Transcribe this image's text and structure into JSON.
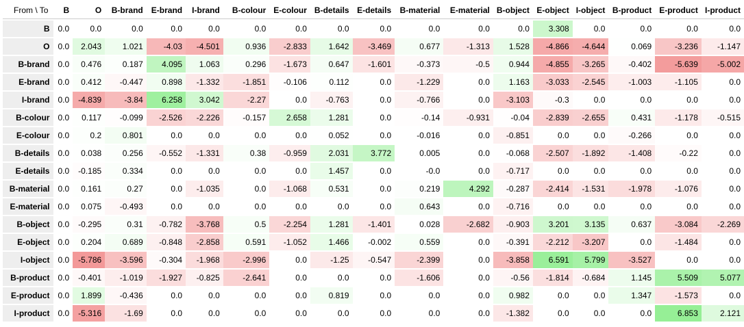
{
  "corner_label": "From \\ To",
  "colors": {
    "positive": "#90ee90",
    "negative": "#f08080",
    "row_header_bg": "#eeeeee"
  },
  "chart_data": {
    "type": "heatmap",
    "xlabel": "To",
    "ylabel": "From",
    "columns": [
      "B",
      "O",
      "B-brand",
      "E-brand",
      "I-brand",
      "B-colour",
      "E-colour",
      "B-details",
      "E-details",
      "B-material",
      "E-material",
      "B-object",
      "E-object",
      "I-object",
      "B-product",
      "E-product",
      "I-product"
    ],
    "rows": [
      "B",
      "O",
      "B-brand",
      "E-brand",
      "I-brand",
      "B-colour",
      "E-colour",
      "B-details",
      "E-details",
      "B-material",
      "E-material",
      "B-object",
      "E-object",
      "I-object",
      "B-product",
      "E-product",
      "I-product"
    ],
    "values": [
      [
        "0.0",
        "0.0",
        "0.0",
        "0.0",
        "0.0",
        "0.0",
        "0.0",
        "0.0",
        "0.0",
        "0.0",
        "0.0",
        "0.0",
        "3.308",
        "0.0",
        "0.0",
        "0.0",
        "0.0"
      ],
      [
        "0.0",
        "2.043",
        "1.021",
        "-4.03",
        "-4.501",
        "0.936",
        "-2.833",
        "1.642",
        "-3.469",
        "0.677",
        "-1.313",
        "1.528",
        "-4.866",
        "-4.644",
        "0.069",
        "-3.236",
        "-1.147"
      ],
      [
        "0.0",
        "0.476",
        "0.187",
        "4.095",
        "1.063",
        "0.296",
        "-1.673",
        "0.647",
        "-1.601",
        "-0.373",
        "-0.5",
        "0.944",
        "-4.855",
        "-3.265",
        "-0.402",
        "-5.639",
        "-5.002"
      ],
      [
        "0.0",
        "0.412",
        "-0.447",
        "0.898",
        "-1.332",
        "-1.851",
        "-0.106",
        "0.112",
        "0.0",
        "-1.229",
        "0.0",
        "1.163",
        "-3.033",
        "-2.545",
        "-1.003",
        "-1.105",
        "0.0"
      ],
      [
        "0.0",
        "-4.839",
        "-3.84",
        "6.258",
        "3.042",
        "-2.27",
        "0.0",
        "-0.763",
        "0.0",
        "-0.766",
        "0.0",
        "-3.103",
        "-0.3",
        "0.0",
        "0.0",
        "0.0",
        "0.0"
      ],
      [
        "0.0",
        "0.117",
        "-0.099",
        "-2.526",
        "-2.226",
        "-0.157",
        "2.658",
        "1.281",
        "0.0",
        "-0.14",
        "-0.931",
        "-0.04",
        "-2.839",
        "-2.655",
        "0.431",
        "-1.178",
        "-0.515"
      ],
      [
        "0.0",
        "0.2",
        "0.801",
        "0.0",
        "0.0",
        "0.0",
        "0.0",
        "0.052",
        "0.0",
        "-0.016",
        "0.0",
        "-0.851",
        "0.0",
        "0.0",
        "-0.266",
        "0.0",
        "0.0"
      ],
      [
        "0.0",
        "0.038",
        "0.256",
        "-0.552",
        "-1.331",
        "0.38",
        "-0.959",
        "2.031",
        "3.772",
        "0.005",
        "0.0",
        "-0.068",
        "-2.507",
        "-1.892",
        "-1.408",
        "-0.22",
        "0.0"
      ],
      [
        "0.0",
        "-0.185",
        "0.334",
        "0.0",
        "0.0",
        "0.0",
        "0.0",
        "1.457",
        "0.0",
        "-0.0",
        "0.0",
        "-0.717",
        "0.0",
        "0.0",
        "0.0",
        "0.0",
        "0.0"
      ],
      [
        "0.0",
        "0.161",
        "0.27",
        "0.0",
        "-1.035",
        "0.0",
        "-1.068",
        "0.531",
        "0.0",
        "0.219",
        "4.292",
        "-0.287",
        "-2.414",
        "-1.531",
        "-1.978",
        "-1.076",
        "0.0"
      ],
      [
        "0.0",
        "0.075",
        "-0.493",
        "0.0",
        "0.0",
        "0.0",
        "0.0",
        "0.0",
        "0.0",
        "0.643",
        "0.0",
        "-0.716",
        "0.0",
        "0.0",
        "0.0",
        "0.0",
        "0.0"
      ],
      [
        "0.0",
        "-0.295",
        "0.31",
        "-0.782",
        "-3.768",
        "0.5",
        "-2.254",
        "1.281",
        "-1.401",
        "0.028",
        "-2.682",
        "-0.903",
        "3.201",
        "3.135",
        "0.637",
        "-3.084",
        "-2.269"
      ],
      [
        "0.0",
        "0.204",
        "0.689",
        "-0.848",
        "-2.858",
        "0.591",
        "-1.052",
        "1.466",
        "-0.002",
        "0.559",
        "0.0",
        "-0.391",
        "-2.212",
        "-3.207",
        "0.0",
        "-1.484",
        "0.0"
      ],
      [
        "0.0",
        "-5.786",
        "-3.596",
        "-0.304",
        "-1.968",
        "-2.996",
        "0.0",
        "-1.25",
        "-0.547",
        "-2.399",
        "0.0",
        "-3.858",
        "6.591",
        "5.799",
        "-3.527",
        "0.0",
        "0.0"
      ],
      [
        "0.0",
        "-0.401",
        "-1.019",
        "-1.927",
        "-0.825",
        "-2.641",
        "0.0",
        "0.0",
        "0.0",
        "-1.606",
        "0.0",
        "-0.56",
        "-1.814",
        "-0.684",
        "1.145",
        "5.509",
        "5.077"
      ],
      [
        "0.0",
        "1.899",
        "-0.436",
        "0.0",
        "0.0",
        "0.0",
        "0.0",
        "0.819",
        "0.0",
        "0.0",
        "0.0",
        "0.982",
        "0.0",
        "0.0",
        "1.347",
        "-1.573",
        "0.0"
      ],
      [
        "0.0",
        "-5.316",
        "-1.69",
        "0.0",
        "0.0",
        "0.0",
        "0.0",
        "0.0",
        "0.0",
        "0.0",
        "0.0",
        "-1.382",
        "0.0",
        "0.0",
        "0.0",
        "6.853",
        "2.121"
      ]
    ]
  }
}
